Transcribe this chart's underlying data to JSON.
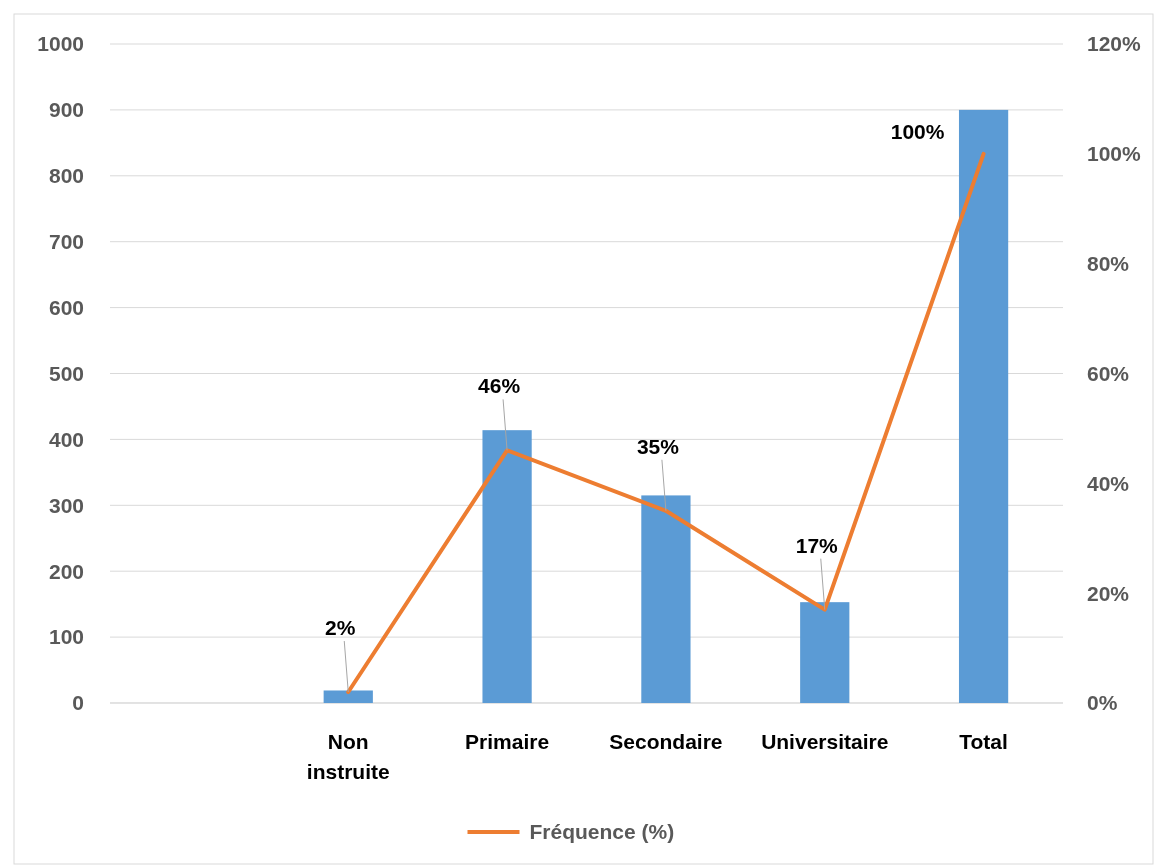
{
  "chart_data": {
    "type": "bar",
    "categories": [
      null,
      "Non instruite",
      "Primaire",
      "Secondaire",
      "Universitaire",
      "Total"
    ],
    "series": [
      {
        "color": "#5b9bd5",
        "values": [
          null,
          19,
          414,
          315,
          153,
          900
        ]
      },
      {
        "type": "line",
        "name": "Fréquence (%)",
        "color": "#ed7d31",
        "axis": "y2",
        "values": [
          null,
          2,
          46,
          35,
          17,
          100
        ],
        "value_labels": [
          null,
          "2%",
          "46%",
          "35%",
          "17%",
          "100%"
        ]
      }
    ],
    "ylim": [
      0,
      1000
    ],
    "yticks": [
      0,
      100,
      200,
      300,
      400,
      500,
      600,
      700,
      800,
      900,
      1000
    ],
    "y2lim": [
      0,
      120
    ],
    "y2ticks": [
      {
        "value": 0,
        "label": "0%"
      },
      {
        "value": 20,
        "label": "20%"
      },
      {
        "value": 40,
        "label": "40%"
      },
      {
        "value": 60,
        "label": "60%"
      },
      {
        "value": 80,
        "label": "80%"
      },
      {
        "value": 100,
        "label": "100%"
      },
      {
        "value": 120,
        "label": "120%"
      }
    ],
    "grid": "y",
    "legend": "bottom",
    "marker": "none",
    "line_style": "solid"
  }
}
